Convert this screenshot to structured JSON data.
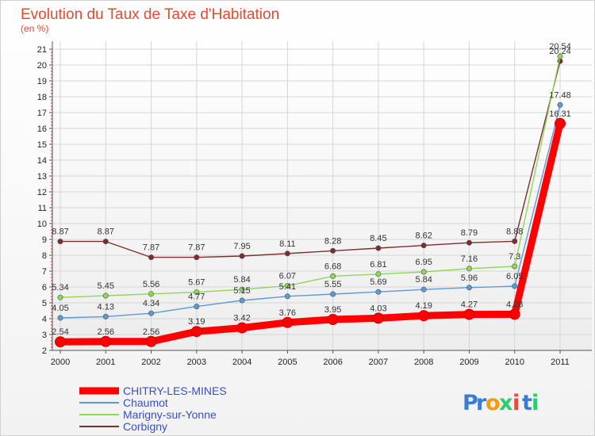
{
  "chart_data": {
    "type": "line",
    "title": "Evolution du Taux de Taxe d'Habitation",
    "subtitle": "(en %)",
    "x": [
      "2000",
      "2001",
      "2002",
      "2003",
      "2004",
      "2005",
      "2006",
      "2007",
      "2008",
      "2009",
      "2010",
      "2011"
    ],
    "ylim": [
      2,
      21
    ],
    "yticks": [
      2,
      3,
      4,
      5,
      6,
      7,
      8,
      9,
      10,
      11,
      12,
      13,
      14,
      15,
      16,
      17,
      18,
      19,
      20,
      21
    ],
    "grid": true,
    "legend": "bottom-left",
    "series": [
      {
        "name": "CHITRY-LES-MINES",
        "color": "#ff0000",
        "values": [
          2.54,
          2.56,
          2.56,
          3.19,
          3.42,
          3.76,
          3.95,
          4.03,
          4.19,
          4.27,
          4.28,
          16.31
        ],
        "labels": [
          "2.54",
          "2.56",
          "2.56",
          "3.19",
          "3.42",
          "3.76",
          "3.95",
          "4.03",
          "4.19",
          "4.27",
          "4.28",
          "16.31"
        ]
      },
      {
        "name": "Chaumot",
        "color": "#5b9bd5",
        "values": [
          4.05,
          4.13,
          4.34,
          4.77,
          5.15,
          5.41,
          5.55,
          5.69,
          5.84,
          5.96,
          6.05,
          17.48
        ],
        "labels": [
          "4.05",
          "4.13",
          "4.34",
          "4.77",
          "5.15",
          "5.41",
          "5.55",
          "5.69",
          "5.84",
          "5.96",
          "6.05",
          "17.48"
        ]
      },
      {
        "name": "Marigny-sur-Yonne",
        "color": "#8ed858",
        "values": [
          5.34,
          5.45,
          5.56,
          5.67,
          5.84,
          6.07,
          6.68,
          6.81,
          6.95,
          7.16,
          7.3,
          20.54
        ],
        "labels": [
          "5.34",
          "5.45",
          "5.56",
          "5.67",
          "5.84",
          "6.07",
          "6.68",
          "6.81",
          "6.95",
          "7.16",
          "7.3",
          "20.54"
        ]
      },
      {
        "name": "Corbigny",
        "color": "#7b2e2e",
        "values": [
          8.87,
          8.87,
          7.87,
          7.87,
          7.95,
          8.11,
          8.28,
          8.45,
          8.62,
          8.79,
          8.88,
          20.24
        ],
        "labels": [
          "8.87",
          "8.87",
          "7.87",
          "7.87",
          "7.95",
          "8.11",
          "8.28",
          "8.45",
          "8.62",
          "8.79",
          "8.88",
          "20.24"
        ]
      }
    ]
  },
  "logo": {
    "letters": [
      "P",
      "r",
      "o",
      "x",
      "i",
      "t",
      "i"
    ]
  }
}
